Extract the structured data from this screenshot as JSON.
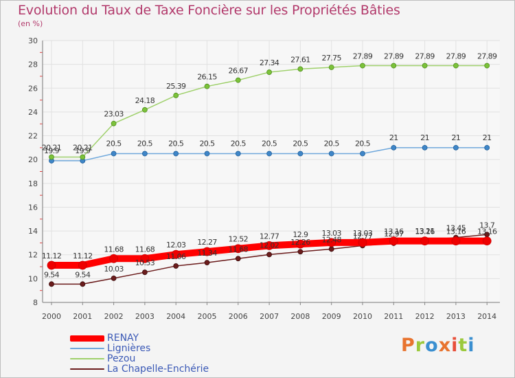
{
  "header": {
    "title": "Evolution du Taux de Taxe Foncière sur les Propriétés Bâties",
    "unit": "(en %)"
  },
  "brand": {
    "logo_text": "Proxiti",
    "colors": [
      "#e8732e",
      "#9bc93c",
      "#3a8fd0",
      "#e8732e",
      "#e84f3a",
      "#9bc93c",
      "#3a8fd0"
    ]
  },
  "colors": {
    "RENAY": "#ff0000",
    "Lignieres": "#6fa8dc",
    "Pezou": "#9ed06a",
    "LaChapelle": "#6b1c1c",
    "title": "#b2396b",
    "legend_text": "#3b59b6"
  },
  "chart_data": {
    "type": "line",
    "title": "Evolution du Taux de Taxe Foncière sur les Propriétés Bâties",
    "ylabel": "(en %)",
    "xlabel": "",
    "ylim": [
      8,
      30
    ],
    "yticks": [
      8,
      10,
      12,
      14,
      16,
      18,
      20,
      22,
      24,
      26,
      28,
      30
    ],
    "grid": true,
    "legend_position": "bottom-left",
    "categories": [
      "2000",
      "2001",
      "2002",
      "2003",
      "2004",
      "2005",
      "2006",
      "2007",
      "2008",
      "2009",
      "2010",
      "2011",
      "2012",
      "2013",
      "2014"
    ],
    "series": [
      {
        "name": "RENAY",
        "values": [
          11.12,
          11.12,
          11.68,
          11.68,
          12.03,
          12.27,
          12.52,
          12.77,
          12.9,
          13.03,
          13.03,
          13.16,
          13.16,
          13.16,
          13.16
        ],
        "labels": [
          "11.12",
          "11.12",
          "11.68",
          "11.68",
          "12.03",
          "12.27",
          "12.52",
          "12.77",
          "12.9",
          "13.03",
          "13.03",
          "13.16",
          "13.16",
          "13.16",
          "13.16"
        ]
      },
      {
        "name": "Lignières",
        "values": [
          19.9,
          19.9,
          20.5,
          20.5,
          20.5,
          20.5,
          20.5,
          20.5,
          20.5,
          20.5,
          20.5,
          21,
          21,
          21,
          21
        ],
        "labels": [
          "19.9",
          "19.9",
          "20.5",
          "20.5",
          "20.5",
          "20.5",
          "20.5",
          "20.5",
          "20.5",
          "20.5",
          "20.5",
          "21",
          "21",
          "21",
          "21"
        ]
      },
      {
        "name": "Pezou",
        "values": [
          20.21,
          20.21,
          23.03,
          24.18,
          25.39,
          26.15,
          26.67,
          27.34,
          27.61,
          27.75,
          27.89,
          27.89,
          27.89,
          27.89,
          27.89
        ],
        "labels": [
          "20.21",
          "20.21",
          "23.03",
          "24.18",
          "25.39",
          "26.15",
          "26.67",
          "27.34",
          "27.61",
          "27.75",
          "27.89",
          "27.89",
          "27.89",
          "27.89",
          "27.89"
        ]
      },
      {
        "name": "La Chapelle-Enchérie",
        "values": [
          9.54,
          9.54,
          10.03,
          10.53,
          11.06,
          11.34,
          11.68,
          12.02,
          12.26,
          12.48,
          12.77,
          12.97,
          13.21,
          13.45,
          13.7
        ],
        "labels": [
          "9.54",
          "9.54",
          "10.03",
          "10.53",
          "11.06",
          "11.34",
          "11.68",
          "12.02",
          "12.26",
          "12.48",
          "12.77",
          "12.97",
          "13.21",
          "13.45",
          "13.7"
        ]
      }
    ]
  }
}
